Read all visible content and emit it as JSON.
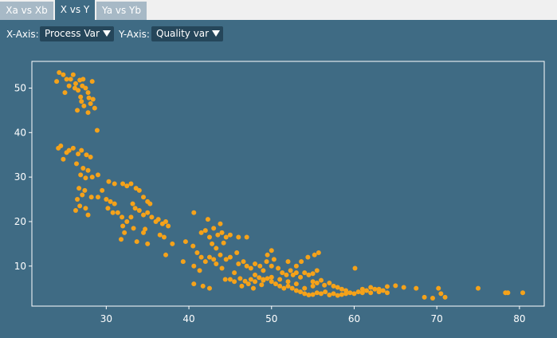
{
  "tabs": [
    {
      "label": "Xa vs Xb",
      "active": false
    },
    {
      "label": "X vs Y",
      "active": true
    },
    {
      "label": "Ya vs Yb",
      "active": false
    }
  ],
  "toolbar": {
    "x_axis_label": "X-Axis:",
    "x_axis_value": "Process Var",
    "y_axis_label": "Y-Axis:",
    "y_axis_value": "Quality var"
  },
  "colors": {
    "background": "#3f6b84",
    "tab_inactive": "#a7b9c6",
    "select_bg": "#25465a",
    "point": "#f5a21a",
    "axis": "#ffffff"
  },
  "chart_data": {
    "type": "scatter",
    "title": "",
    "xlabel": "",
    "ylabel": "",
    "xlim": [
      21,
      83
    ],
    "ylim": [
      1,
      56
    ],
    "xticks": [
      30,
      40,
      50,
      60,
      70,
      80
    ],
    "yticks": [
      10,
      20,
      30,
      40,
      50
    ],
    "grid": false,
    "legend": "none",
    "points": [
      [
        24,
        51.5
      ],
      [
        24.3,
        53.5
      ],
      [
        24.8,
        53
      ],
      [
        25.2,
        52
      ],
      [
        25,
        49
      ],
      [
        25.5,
        50.5
      ],
      [
        26,
        53
      ],
      [
        26.3,
        51
      ],
      [
        26.6,
        49.5
      ],
      [
        26.9,
        48
      ],
      [
        27.2,
        52
      ],
      [
        27.5,
        50
      ],
      [
        27.8,
        49
      ],
      [
        28.3,
        51.5
      ],
      [
        27,
        47
      ],
      [
        27.3,
        46
      ],
      [
        28.1,
        46.5
      ],
      [
        28.6,
        45.5
      ],
      [
        26.5,
        45
      ],
      [
        27.8,
        44.5
      ],
      [
        28.9,
        40.5
      ],
      [
        25.7,
        52
      ],
      [
        26.2,
        50
      ],
      [
        27.1,
        50.5
      ],
      [
        27.9,
        47.8
      ],
      [
        26.8,
        51.8
      ],
      [
        28.4,
        47.5
      ],
      [
        24.2,
        36.5
      ],
      [
        24.5,
        37
      ],
      [
        25.2,
        35.5
      ],
      [
        24.8,
        34
      ],
      [
        25.5,
        36
      ],
      [
        26,
        36.5
      ],
      [
        26.6,
        35.2
      ],
      [
        27,
        36
      ],
      [
        27.6,
        35
      ],
      [
        28.1,
        34.5
      ],
      [
        26.4,
        33
      ],
      [
        27.2,
        32
      ],
      [
        27.8,
        31.5
      ],
      [
        26.9,
        30.5
      ],
      [
        27.5,
        29.8
      ],
      [
        28.3,
        30
      ],
      [
        29,
        30.5
      ],
      [
        26.7,
        27.5
      ],
      [
        27.4,
        27
      ],
      [
        26.5,
        25
      ],
      [
        27.1,
        26
      ],
      [
        28.2,
        25.5
      ],
      [
        26.8,
        23.5
      ],
      [
        27.5,
        23
      ],
      [
        26.3,
        22.5
      ],
      [
        27.8,
        21.5
      ],
      [
        29,
        25.5
      ],
      [
        30,
        25
      ],
      [
        31,
        24
      ],
      [
        30.5,
        24.5
      ],
      [
        30.2,
        23
      ],
      [
        30.8,
        22
      ],
      [
        30.3,
        29
      ],
      [
        31,
        28.5
      ],
      [
        32,
        28.5
      ],
      [
        32.5,
        28
      ],
      [
        33,
        28.5
      ],
      [
        33.6,
        27.5
      ],
      [
        34,
        27
      ],
      [
        34.5,
        25.5
      ],
      [
        35,
        24.5
      ],
      [
        35.3,
        24
      ],
      [
        29.5,
        27
      ],
      [
        31.4,
        22
      ],
      [
        31.9,
        21
      ],
      [
        32.5,
        20
      ],
      [
        33,
        21
      ],
      [
        33.5,
        23
      ],
      [
        34,
        22.5
      ],
      [
        34.5,
        21.5
      ],
      [
        35,
        22
      ],
      [
        35.5,
        21
      ],
      [
        36,
        20
      ],
      [
        36.3,
        20.5
      ],
      [
        36.8,
        19.5
      ],
      [
        37.2,
        20
      ],
      [
        37.5,
        19
      ],
      [
        33.2,
        24
      ],
      [
        32,
        19
      ],
      [
        33.3,
        18.5
      ],
      [
        32.2,
        17.5
      ],
      [
        34.7,
        18.3
      ],
      [
        31.8,
        16
      ],
      [
        33.7,
        15.5
      ],
      [
        35,
        15
      ],
      [
        36.5,
        17
      ],
      [
        37,
        16.5
      ],
      [
        34.5,
        17.5
      ],
      [
        38,
        15
      ],
      [
        37.2,
        12.5
      ],
      [
        39.6,
        15.5
      ],
      [
        40.5,
        14.5
      ],
      [
        41,
        13
      ],
      [
        41.5,
        17.5
      ],
      [
        42,
        18
      ],
      [
        42.5,
        16.5
      ],
      [
        43,
        18.5
      ],
      [
        43.5,
        17
      ],
      [
        44,
        17.5
      ],
      [
        44.5,
        16.5
      ],
      [
        45,
        17
      ],
      [
        46,
        16.5
      ],
      [
        47,
        16.5
      ],
      [
        40.6,
        22
      ],
      [
        42.3,
        20.5
      ],
      [
        43.8,
        19.5
      ],
      [
        42.8,
        15
      ],
      [
        43.3,
        14
      ],
      [
        44.2,
        15.2
      ],
      [
        41.5,
        12
      ],
      [
        42,
        11
      ],
      [
        42.5,
        12
      ],
      [
        43,
        11.5
      ],
      [
        43.8,
        12.5
      ],
      [
        44.5,
        11.5
      ],
      [
        45,
        12
      ],
      [
        45.8,
        13
      ],
      [
        39.3,
        11
      ],
      [
        40.6,
        10
      ],
      [
        41.3,
        9
      ],
      [
        43.3,
        10.5
      ],
      [
        44,
        9.5
      ],
      [
        40.6,
        6
      ],
      [
        41.7,
        5.5
      ],
      [
        42.5,
        5
      ],
      [
        44.4,
        7
      ],
      [
        45.5,
        8.5
      ],
      [
        45,
        7
      ],
      [
        45.5,
        6.5
      ],
      [
        46.2,
        7.2
      ],
      [
        46.8,
        6.6
      ],
      [
        47.5,
        7
      ],
      [
        48,
        6.5
      ],
      [
        48.5,
        7.4
      ],
      [
        49,
        6.8
      ],
      [
        49.5,
        7.2
      ],
      [
        50,
        6.5
      ],
      [
        50.5,
        6
      ],
      [
        51,
        5.5
      ],
      [
        51.5,
        5
      ],
      [
        52,
        5.5
      ],
      [
        52.5,
        5
      ],
      [
        53,
        4.5
      ],
      [
        53.5,
        4.2
      ],
      [
        54,
        3.8
      ],
      [
        54.5,
        3.5
      ],
      [
        55,
        3.6
      ],
      [
        55.5,
        4
      ],
      [
        56,
        3.8
      ],
      [
        56.5,
        4.2
      ],
      [
        57,
        3.5
      ],
      [
        57.5,
        3.8
      ],
      [
        58,
        3.4
      ],
      [
        58.5,
        3.6
      ],
      [
        59,
        3.8
      ],
      [
        59.5,
        4
      ],
      [
        60,
        3.8
      ],
      [
        60.5,
        4.2
      ],
      [
        61,
        4
      ],
      [
        61.5,
        4.5
      ],
      [
        62,
        4
      ],
      [
        62.5,
        4.8
      ],
      [
        63,
        4.2
      ],
      [
        63.5,
        4.5
      ],
      [
        64,
        4
      ],
      [
        46,
        10.5
      ],
      [
        46.6,
        11
      ],
      [
        47,
        10
      ],
      [
        47.5,
        9.5
      ],
      [
        48,
        10.5
      ],
      [
        48.6,
        10
      ],
      [
        49,
        9
      ],
      [
        49.4,
        11
      ],
      [
        50,
        10
      ],
      [
        50.3,
        11.5
      ],
      [
        50.8,
        9.5
      ],
      [
        51.3,
        8.5
      ],
      [
        51.8,
        8
      ],
      [
        52.3,
        9
      ],
      [
        52.6,
        8
      ],
      [
        53,
        8.5
      ],
      [
        53.5,
        7.5
      ],
      [
        54,
        8.5
      ],
      [
        54.5,
        8
      ],
      [
        55,
        8.3
      ],
      [
        55.5,
        9
      ],
      [
        53.6,
        11
      ],
      [
        54.4,
        12
      ],
      [
        55.2,
        12.5
      ],
      [
        55.7,
        13
      ],
      [
        52,
        11
      ],
      [
        50,
        13.5
      ],
      [
        49.5,
        12.5
      ],
      [
        53,
        10
      ],
      [
        55,
        6.5
      ],
      [
        55.5,
        6.2
      ],
      [
        56,
        6.8
      ],
      [
        56.4,
        5.7
      ],
      [
        57,
        6.2
      ],
      [
        57.5,
        5.5
      ],
      [
        58,
        5.2
      ],
      [
        58.5,
        4.8
      ],
      [
        59,
        4.5
      ],
      [
        60.1,
        9.5
      ],
      [
        55,
        5.5
      ],
      [
        54,
        5
      ],
      [
        53,
        6
      ],
      [
        52,
        6.5
      ],
      [
        51,
        7
      ],
      [
        50,
        7.5
      ],
      [
        49,
        7
      ],
      [
        48,
        8
      ],
      [
        47.2,
        6
      ],
      [
        46.4,
        5.5
      ],
      [
        47.8,
        5
      ],
      [
        48.8,
        5.8
      ],
      [
        61,
        4.8
      ],
      [
        62,
        5.2
      ],
      [
        63,
        4.8
      ],
      [
        64,
        5.4
      ],
      [
        65,
        5.6
      ],
      [
        66,
        5.2
      ],
      [
        67.5,
        5
      ],
      [
        68.5,
        3
      ],
      [
        69.5,
        2.8
      ],
      [
        70.2,
        5
      ],
      [
        70.5,
        3.8
      ],
      [
        71,
        3
      ],
      [
        75,
        5
      ],
      [
        78.3,
        4
      ],
      [
        78.6,
        4
      ],
      [
        80.4,
        4
      ]
    ]
  }
}
